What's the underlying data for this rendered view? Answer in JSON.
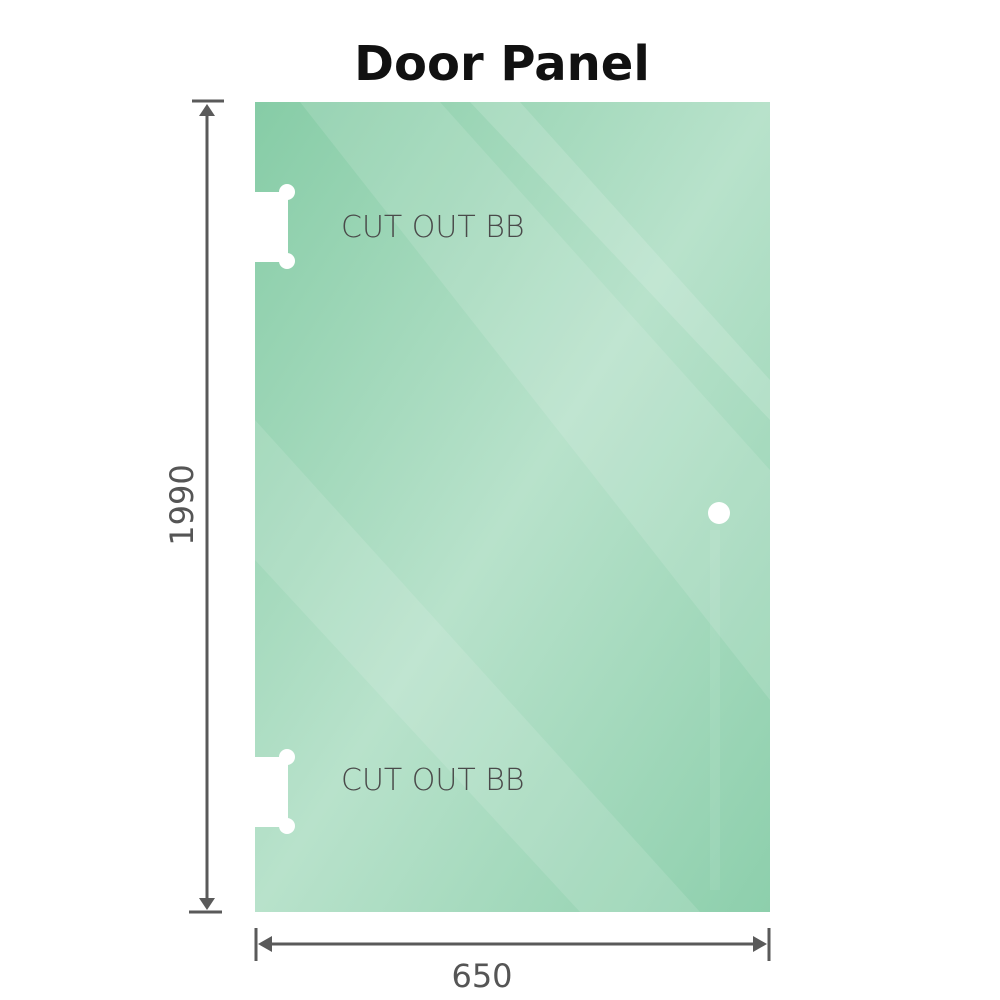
{
  "title": "Door Panel",
  "labels": {
    "cutout_top": "CUT OUT BB",
    "cutout_bottom": "CUT OUT BB"
  },
  "dimensions": {
    "height": "1990",
    "width": "650"
  },
  "colors": {
    "glass": "#8fd0ae",
    "glass_light": "#b9e3cc",
    "dimension_line": "#5a5a5a"
  }
}
